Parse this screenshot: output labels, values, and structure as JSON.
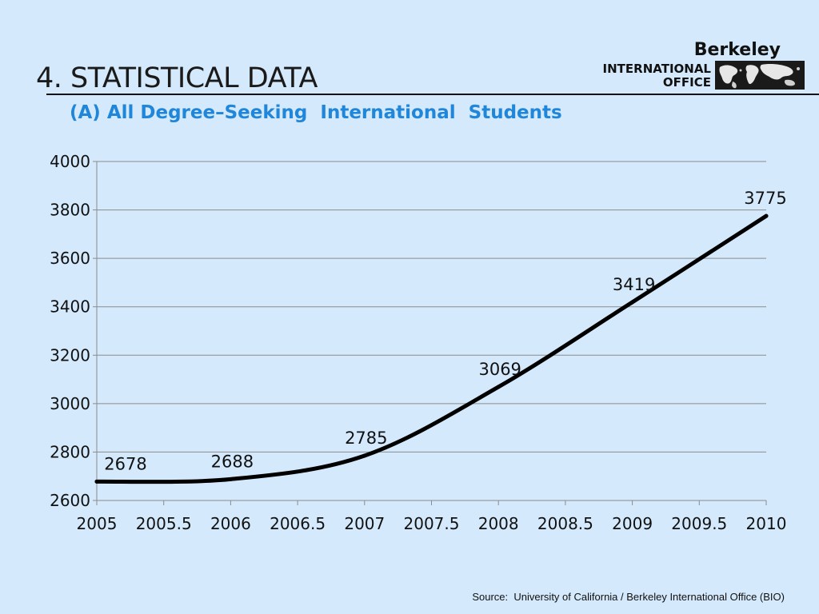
{
  "slide": {
    "title": "4. STATISTICAL DATA",
    "subtitle": "(A) All Degree–Seeking  International  Students",
    "source": "Source:  University of California / Berkeley International Office (BIO)"
  },
  "logo": {
    "name": "Berkeley",
    "line1": "INTERNATIONAL",
    "line2": "OFFICE",
    "icon": "world-map-icon"
  },
  "colors": {
    "background": "#d4e9fb",
    "subtitle": "#1f86d9",
    "line": "#000000",
    "grid": "#8c8c8c"
  },
  "chart_data": {
    "type": "line",
    "title": "",
    "xlabel": "",
    "ylabel": "",
    "x": [
      2005,
      2006,
      2007,
      2008,
      2009,
      2010
    ],
    "series": [
      {
        "values": [
          2678,
          2688,
          2785,
          3069,
          3419,
          3775
        ]
      }
    ],
    "data_labels": [
      "2678",
      "2688",
      "2785",
      "3069",
      "3419",
      "3775"
    ],
    "xlim": [
      2005,
      2010
    ],
    "ylim": [
      2600,
      4000
    ],
    "x_ticks": [
      2005,
      2005.5,
      2006,
      2006.5,
      2007,
      2007.5,
      2008,
      2008.5,
      2009,
      2009.5,
      2010
    ],
    "x_tick_labels": [
      "2005",
      "2005.5",
      "2006",
      "2006.5",
      "2007",
      "2007.5",
      "2008",
      "2008.5",
      "2009",
      "2009.5",
      "2010"
    ],
    "y_ticks": [
      2600,
      2800,
      3000,
      3200,
      3400,
      3600,
      3800,
      4000
    ],
    "y_tick_labels": [
      "2600",
      "2800",
      "3000",
      "3200",
      "3400",
      "3600",
      "3800",
      "4000"
    ],
    "smooth": true,
    "grid": true,
    "legend": "none"
  }
}
